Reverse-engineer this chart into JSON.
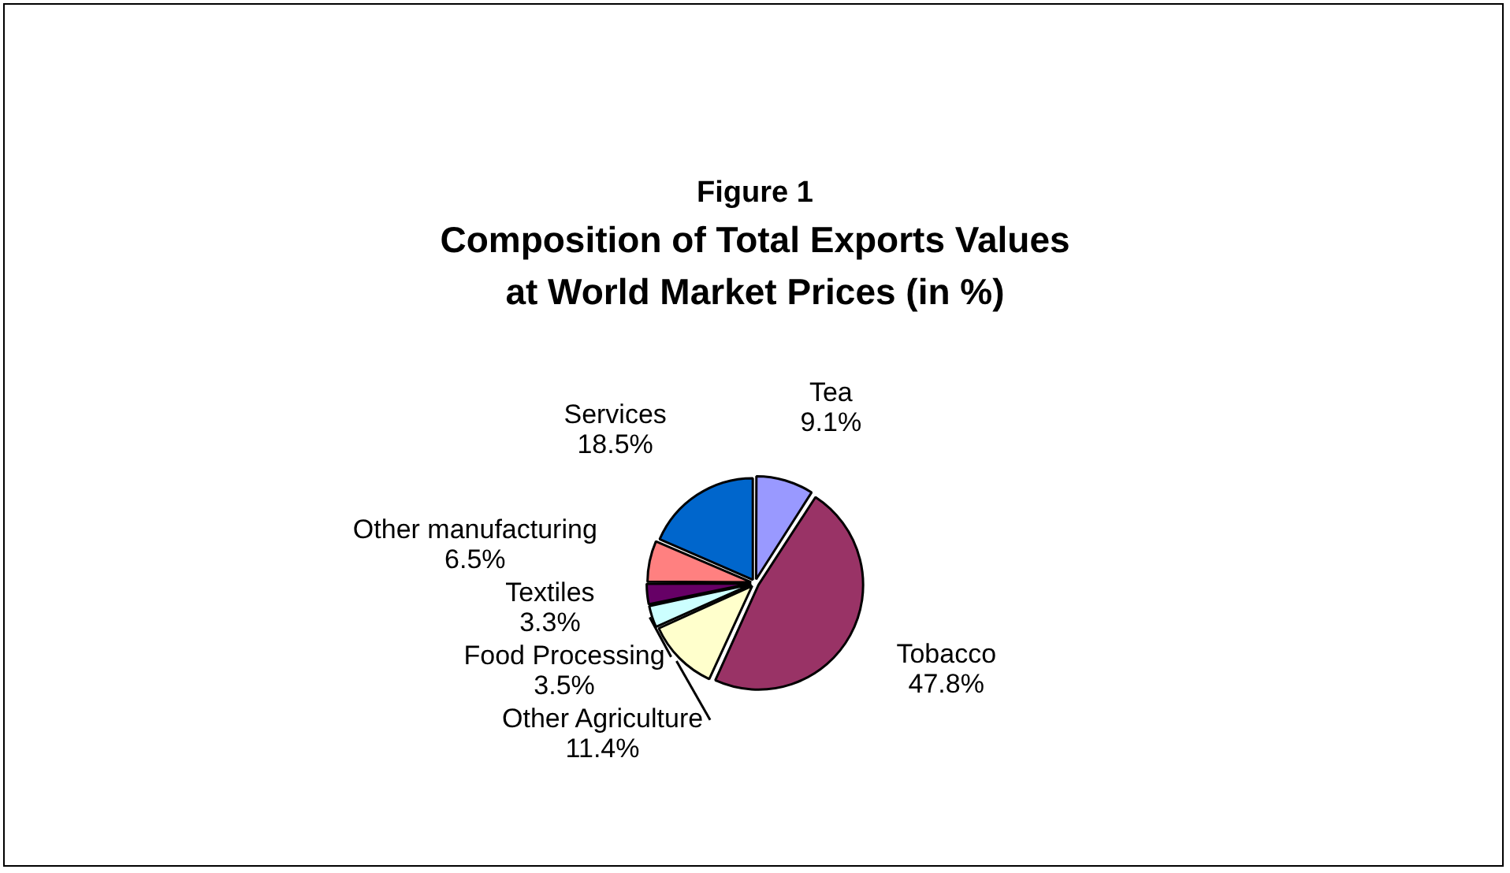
{
  "chart_data": {
    "type": "pie",
    "title": "Figure 1",
    "subtitle": "Composition of Total Exports Values at World Market Prices (in %)",
    "categories": [
      "Tea",
      "Tobacco",
      "Other Agriculture",
      "Food Processing",
      "Textiles",
      "Other manufacturing",
      "Services"
    ],
    "values": [
      9.1,
      47.8,
      11.4,
      3.5,
      3.3,
      6.5,
      18.5
    ],
    "colors": [
      "#9999ff",
      "#993366",
      "#ffffcc",
      "#ccffff",
      "#660066",
      "#ff8080",
      "#0066cc"
    ],
    "value_labels": [
      "9.1%",
      "47.8%",
      "11.4%",
      "3.5%",
      "3.3%",
      "6.5%",
      "18.5%"
    ],
    "legend": false
  }
}
